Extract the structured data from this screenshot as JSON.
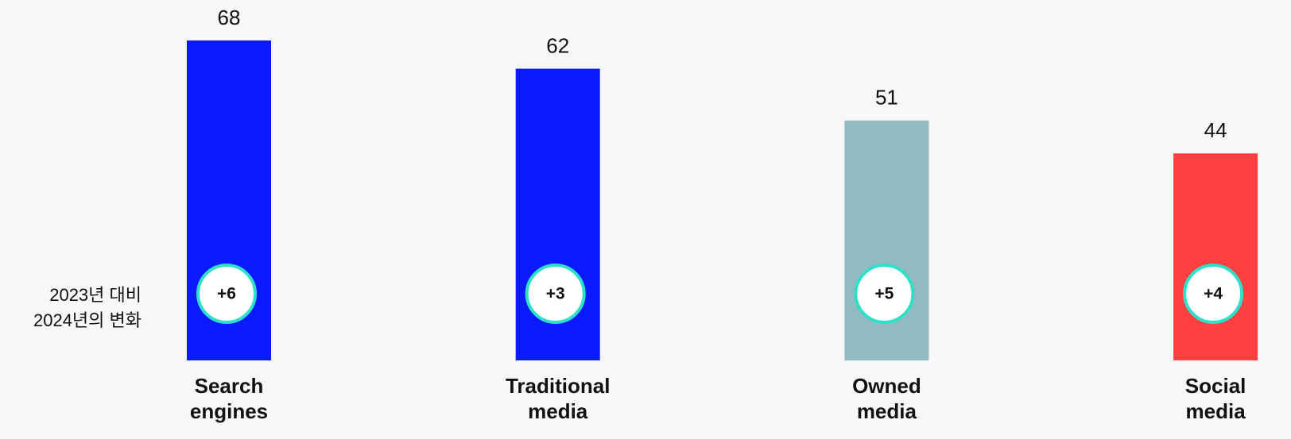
{
  "chart_data": {
    "type": "bar",
    "categories": [
      [
        "Search",
        "engines"
      ],
      [
        "Traditional",
        "media"
      ],
      [
        "Owned",
        "media"
      ],
      [
        "Social",
        "media"
      ]
    ],
    "values": [
      68,
      62,
      51,
      44
    ],
    "colors": [
      "#0a1aff",
      "#0a1aff",
      "#93bac0",
      "#ff4040"
    ],
    "change_label": [
      "2023년 대비",
      "2024년의 변화"
    ],
    "changes": [
      6,
      3,
      5,
      4
    ],
    "change_labels": [
      "+6",
      "+3",
      "+5",
      "+4"
    ]
  }
}
